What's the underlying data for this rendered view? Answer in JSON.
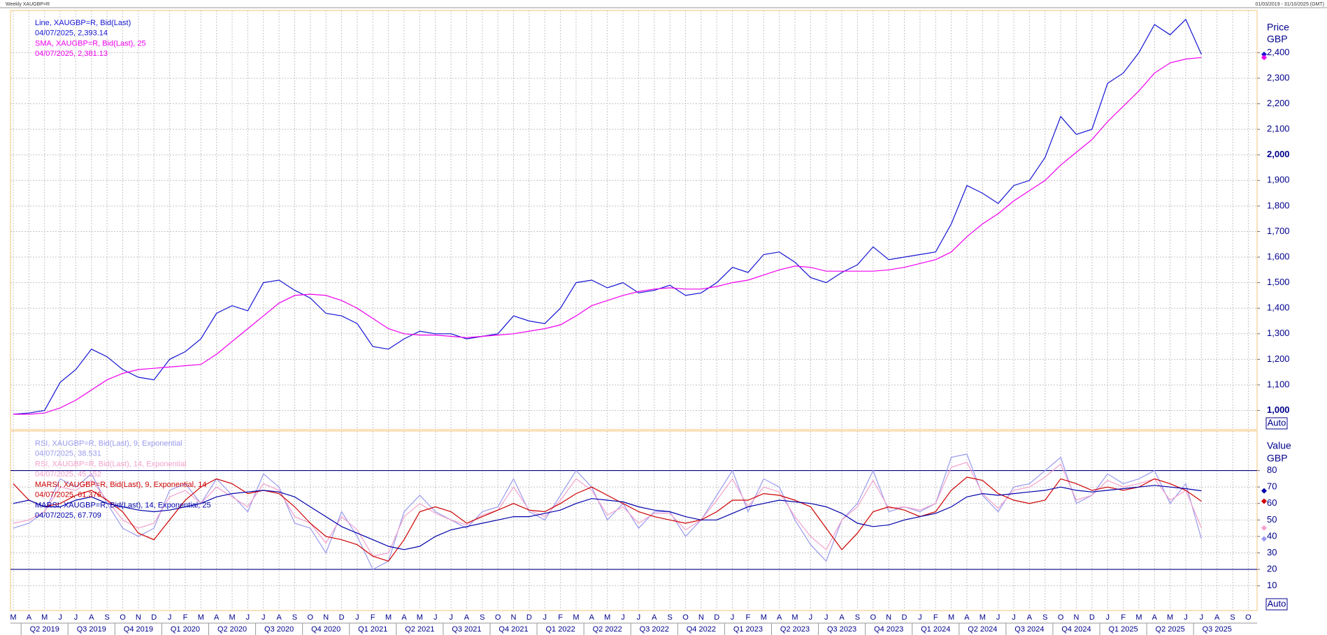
{
  "chart_data": [
    {
      "type": "line",
      "title": "Weekly XAUGBP=R",
      "subtitle": "01/03/2019 - 31/10/2025 (GMT)",
      "ylabel": "Price",
      "yunit": "GBP",
      "scale_mode": "Auto",
      "categories": [
        "M",
        "A",
        "M",
        "J",
        "J",
        "A",
        "S",
        "O",
        "N",
        "D",
        "J",
        "F",
        "M",
        "A",
        "M",
        "J",
        "J",
        "A",
        "S",
        "O",
        "N",
        "D",
        "J",
        "F",
        "M",
        "A",
        "M",
        "J",
        "J",
        "A",
        "S",
        "O",
        "N",
        "D",
        "J",
        "F",
        "M",
        "A",
        "M",
        "J",
        "J",
        "A",
        "S",
        "O",
        "N",
        "D",
        "J",
        "F",
        "M",
        "A",
        "M",
        "J",
        "J",
        "A",
        "S",
        "O",
        "N",
        "D",
        "J",
        "F",
        "M",
        "A",
        "M",
        "J",
        "J",
        "A",
        "S",
        "O",
        "N",
        "D",
        "J",
        "F",
        "M",
        "A",
        "M",
        "J",
        "J",
        "A",
        "S",
        "O"
      ],
      "quarters": [
        "Q2 2019",
        "Q3 2019",
        "Q4 2019",
        "Q1 2020",
        "Q2 2020",
        "Q3 2020",
        "Q4 2020",
        "Q1 2021",
        "Q2 2021",
        "Q3 2021",
        "Q4 2021",
        "Q1 2022",
        "Q2 2022",
        "Q3 2022",
        "Q4 2022",
        "Q1 2023",
        "Q2 2023",
        "Q3 2023",
        "Q4 2023",
        "Q1 2024",
        "Q2 2024",
        "Q3 2024",
        "Q4 2024",
        "Q1 2025",
        "Q2 2025",
        "Q3 2025"
      ],
      "ylim": [
        925,
        2565
      ],
      "yticks": [
        {
          "value": 1000,
          "label": "1,000"
        },
        {
          "value": 1100,
          "label": "1,100"
        },
        {
          "value": 1200,
          "label": "1,200"
        },
        {
          "value": 1300,
          "label": "1,300"
        },
        {
          "value": 1400,
          "label": "1,400"
        },
        {
          "value": 1500,
          "label": "1,500"
        },
        {
          "value": 1600,
          "label": "1,600"
        },
        {
          "value": 1700,
          "label": "1,700"
        },
        {
          "value": 1800,
          "label": "1,800"
        },
        {
          "value": 1900,
          "label": "1,900"
        },
        {
          "value": 2000,
          "label": "2,000"
        },
        {
          "value": 2100,
          "label": "2,100"
        },
        {
          "value": 2200,
          "label": "2,200"
        },
        {
          "value": 2300,
          "label": "2,300"
        },
        {
          "value": 2400,
          "label": "2,400"
        }
      ],
      "grid": true,
      "series": [
        {
          "name": "Line, XAUGBP=R, Bid(Last)",
          "legend_value": "04/07/2025, 2,393.14",
          "color": "#1414d2",
          "values": [
            985,
            990,
            1000,
            1110,
            1160,
            1240,
            1210,
            1160,
            1130,
            1120,
            1200,
            1230,
            1280,
            1380,
            1410,
            1390,
            1500,
            1510,
            1470,
            1440,
            1380,
            1370,
            1340,
            1250,
            1240,
            1280,
            1310,
            1300,
            1300,
            1280,
            1290,
            1300,
            1370,
            1350,
            1340,
            1400,
            1500,
            1510,
            1480,
            1500,
            1460,
            1470,
            1490,
            1450,
            1460,
            1500,
            1560,
            1540,
            1610,
            1620,
            1580,
            1520,
            1500,
            1540,
            1570,
            1640,
            1590,
            1600,
            1610,
            1620,
            1730,
            1880,
            1850,
            1810,
            1880,
            1900,
            1990,
            2150,
            2080,
            2100,
            2280,
            2320,
            2400,
            2510,
            2470,
            2530,
            2393.14,
            null,
            null,
            null
          ]
        },
        {
          "name": "SMA, XAUGBP=R, Bid(Last),  25",
          "legend_value": "04/07/2025, 2,381.13",
          "color": "#ee00ee",
          "values": [
            985,
            985,
            990,
            1010,
            1040,
            1080,
            1120,
            1145,
            1160,
            1165,
            1170,
            1175,
            1180,
            1220,
            1270,
            1320,
            1370,
            1420,
            1450,
            1455,
            1450,
            1430,
            1400,
            1360,
            1320,
            1300,
            1295,
            1295,
            1290,
            1285,
            1290,
            1295,
            1300,
            1310,
            1320,
            1335,
            1370,
            1410,
            1430,
            1450,
            1465,
            1475,
            1480,
            1475,
            1475,
            1485,
            1500,
            1510,
            1530,
            1550,
            1565,
            1560,
            1545,
            1545,
            1545,
            1545,
            1550,
            1560,
            1575,
            1590,
            1620,
            1680,
            1730,
            1770,
            1820,
            1860,
            1900,
            1960,
            2010,
            2060,
            2130,
            2190,
            2250,
            2320,
            2360,
            2375,
            2381.13,
            null,
            null,
            null
          ]
        }
      ]
    },
    {
      "type": "line",
      "ylabel": "Value",
      "yunit": "GBP",
      "scale_mode": "Auto",
      "ylim": [
        -5,
        104
      ],
      "yticks": [
        10,
        20,
        30,
        40,
        50,
        60,
        70,
        80
      ],
      "grid": true,
      "hlines": [
        80,
        20
      ],
      "hline_color": "#000080",
      "series": [
        {
          "name": "RSI, XAUGBP=R, Bid(Last),  9, Exponential",
          "legend_value": "04/07/2025, 38.531",
          "color": "#9a9aee",
          "values": [
            45,
            48,
            55,
            75,
            70,
            78,
            60,
            45,
            40,
            45,
            68,
            72,
            60,
            75,
            65,
            55,
            78,
            70,
            48,
            45,
            30,
            55,
            40,
            20,
            25,
            55,
            65,
            55,
            50,
            45,
            55,
            58,
            75,
            55,
            50,
            65,
            80,
            70,
            50,
            60,
            45,
            55,
            55,
            40,
            50,
            65,
            80,
            55,
            75,
            70,
            50,
            35,
            25,
            50,
            60,
            80,
            55,
            58,
            55,
            60,
            88,
            90,
            65,
            55,
            70,
            72,
            80,
            88,
            60,
            65,
            78,
            72,
            75,
            80,
            60,
            72,
            38.531,
            null,
            null,
            null
          ]
        },
        {
          "name": "RSI, XAUGBP=R, Bid(Last),  14, Exponential",
          "legend_value": "04/07/2025, 45.152",
          "color": "#f2a2cc",
          "values": [
            48,
            50,
            55,
            70,
            68,
            74,
            62,
            50,
            45,
            48,
            64,
            68,
            60,
            70,
            64,
            58,
            72,
            68,
            52,
            48,
            36,
            52,
            44,
            28,
            30,
            52,
            60,
            54,
            50,
            47,
            53,
            56,
            70,
            56,
            52,
            62,
            75,
            68,
            53,
            58,
            48,
            54,
            54,
            44,
            50,
            62,
            75,
            58,
            70,
            67,
            52,
            40,
            32,
            50,
            58,
            74,
            57,
            58,
            56,
            60,
            82,
            85,
            66,
            57,
            68,
            70,
            76,
            84,
            62,
            65,
            74,
            70,
            72,
            75,
            62,
            68,
            45.152,
            null,
            null,
            null
          ]
        },
        {
          "name": "MARSI, XAUGBP=R, Bid(Last),  9, Exponential, 14",
          "legend_value": "04/07/2025, 61.376",
          "color": "#cc0000",
          "values": [
            72,
            62,
            58,
            60,
            65,
            68,
            62,
            55,
            42,
            38,
            50,
            62,
            70,
            75,
            72,
            66,
            68,
            66,
            58,
            48,
            40,
            38,
            35,
            28,
            25,
            38,
            55,
            58,
            55,
            48,
            52,
            56,
            60,
            56,
            55,
            60,
            66,
            70,
            65,
            60,
            55,
            52,
            50,
            48,
            50,
            55,
            62,
            62,
            66,
            65,
            62,
            58,
            45,
            32,
            42,
            55,
            58,
            56,
            52,
            55,
            68,
            76,
            74,
            66,
            62,
            60,
            62,
            75,
            72,
            68,
            70,
            68,
            70,
            75,
            72,
            68,
            61.376,
            null,
            null,
            null
          ]
        },
        {
          "name": "MARSI, XAUGBP=R, Bid(Last),  14, Exponential, 25",
          "legend_value": "04/07/2025, 67.709",
          "color": "#0000aa",
          "values": [
            60,
            62,
            58,
            58,
            62,
            64,
            60,
            58,
            56,
            55,
            56,
            58,
            60,
            64,
            66,
            67,
            68,
            67,
            64,
            58,
            52,
            46,
            42,
            38,
            34,
            32,
            34,
            40,
            44,
            46,
            48,
            50,
            52,
            52,
            54,
            56,
            60,
            63,
            62,
            61,
            58,
            56,
            55,
            52,
            50,
            50,
            54,
            58,
            60,
            62,
            61,
            60,
            58,
            54,
            48,
            46,
            47,
            50,
            52,
            54,
            58,
            64,
            66,
            65,
            66,
            67,
            68,
            70,
            68,
            67,
            68,
            69,
            70,
            71,
            70,
            69,
            67.709,
            null,
            null,
            null
          ]
        }
      ]
    }
  ]
}
